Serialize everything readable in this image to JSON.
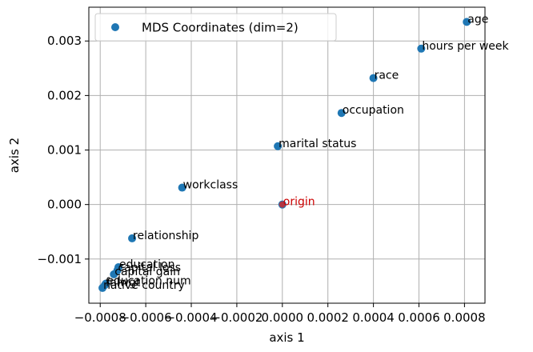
{
  "chart_data": {
    "type": "scatter",
    "xlabel": "axis 1",
    "ylabel": "axis 2",
    "xlim": [
      -0.00085,
      0.00089
    ],
    "ylim": [
      -0.00181,
      0.00362
    ],
    "xticks": [
      -0.0008,
      -0.0006,
      -0.0004,
      -0.0002,
      0.0,
      0.0002,
      0.0004,
      0.0006,
      0.0008
    ],
    "xtick_labels": [
      "−0.0008",
      "−0.0006",
      "−0.0004",
      "−0.0002",
      "0.0000",
      "0.0002",
      "0.0004",
      "0.0006",
      "0.0008"
    ],
    "yticks": [
      -0.001,
      0.0,
      0.001,
      0.002,
      0.003
    ],
    "ytick_labels": [
      "−0.001",
      "0.000",
      "0.001",
      "0.002",
      "0.003"
    ],
    "grid": true,
    "legend": {
      "position": "top-left",
      "entries": [
        "MDS Coordinates (dim=2)"
      ]
    },
    "series": [
      {
        "name": "MDS Coordinates (dim=2)",
        "color": "#1f77b4",
        "points": [
          {
            "label": "age",
            "x": 0.00081,
            "y": 0.00335
          },
          {
            "label": "hours per week",
            "x": 0.00061,
            "y": 0.00286
          },
          {
            "label": "race",
            "x": 0.0004,
            "y": 0.00232
          },
          {
            "label": "occupation",
            "x": 0.00026,
            "y": 0.00168
          },
          {
            "label": "marital status",
            "x": -2e-05,
            "y": 0.00107
          },
          {
            "label": "workclass",
            "x": -0.00044,
            "y": 0.00031
          },
          {
            "label": "relationship",
            "x": -0.00066,
            "y": -0.00062
          },
          {
            "label": "education",
            "x": -0.00072,
            "y": -0.00115
          },
          {
            "label": "capital loss",
            "x": -0.000725,
            "y": -0.00121
          },
          {
            "label": "capital gain",
            "x": -0.00074,
            "y": -0.00128
          },
          {
            "label": "education num",
            "x": -0.000775,
            "y": -0.00145
          },
          {
            "label": "fnlwgt",
            "x": -0.00078,
            "y": -0.00148
          },
          {
            "label": "native country",
            "x": -0.00079,
            "y": -0.00153
          }
        ]
      }
    ],
    "origin": {
      "label": "origin",
      "x": 0.0,
      "y": 0.0,
      "color": "#d62728",
      "label_color": "#cc0000"
    }
  }
}
